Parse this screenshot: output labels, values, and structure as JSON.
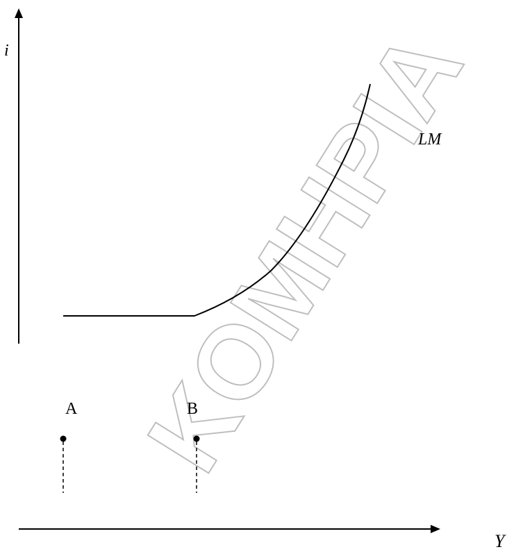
{
  "diagram": {
    "y_axis_label": "i",
    "x_axis_label": "Y",
    "curve_label": "LM",
    "points": [
      {
        "label": "A"
      },
      {
        "label": "B"
      }
    ]
  },
  "watermark": {
    "text": "KOMHPIA"
  },
  "colors": {
    "line": "#000000",
    "watermark_outline": "#b8b8b8",
    "background": "#ffffff"
  }
}
